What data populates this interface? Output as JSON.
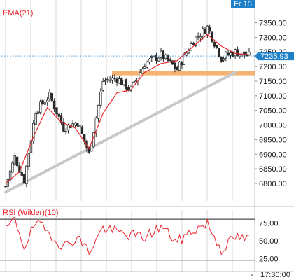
{
  "chart_data": [
    {
      "type": "candlestick",
      "indicator_label": "EMA(21)",
      "period_tag": "Fr 15",
      "last_price_label": "7235.93",
      "last_price": 7235.93,
      "ylim": [
        6740,
        7380
      ],
      "y_ticks": [
        "7350.00",
        "7300.00",
        "7250.00",
        "7200.00",
        "7150.00",
        "7100.00",
        "7050.00",
        "7000.00",
        "6950.00",
        "6900.00",
        "6850.00",
        "6800.00"
      ],
      "grid": true,
      "support_band": {
        "from": 7170,
        "to": 7184
      },
      "trendline": {
        "from_index": 0,
        "from_value": 6770,
        "to_index": 99,
        "to_value": 7180
      },
      "close_path": [
        [
          0,
          6790
        ],
        [
          4,
          6890
        ],
        [
          8,
          6810
        ],
        [
          13,
          7050
        ],
        [
          19,
          7100
        ],
        [
          25,
          6990
        ],
        [
          31,
          7010
        ],
        [
          36,
          6900
        ],
        [
          42,
          7150
        ],
        [
          48,
          7160
        ],
        [
          54,
          7120
        ],
        [
          60,
          7210
        ],
        [
          67,
          7240
        ],
        [
          74,
          7190
        ],
        [
          81,
          7290
        ],
        [
          87,
          7335
        ],
        [
          93,
          7230
        ],
        [
          99,
          7250
        ],
        [
          105,
          7235.93
        ]
      ],
      "ema_path": [
        [
          0,
          6800
        ],
        [
          6,
          6840
        ],
        [
          12,
          6960
        ],
        [
          18,
          7060
        ],
        [
          24,
          7010
        ],
        [
          30,
          6990
        ],
        [
          36,
          6920
        ],
        [
          42,
          7040
        ],
        [
          48,
          7110
        ],
        [
          54,
          7120
        ],
        [
          60,
          7180
        ],
        [
          67,
          7210
        ],
        [
          74,
          7220
        ],
        [
          81,
          7270
        ],
        [
          87,
          7310
        ],
        [
          93,
          7270
        ],
        [
          99,
          7245
        ],
        [
          105,
          7240
        ]
      ],
      "colors": {
        "up": "#2a2a2a",
        "down": "#2a2a2a",
        "ema": "#e8242b",
        "band": "#f2a65a",
        "trendline": "#c8c8c8",
        "price_tag": "#1e80c8"
      }
    },
    {
      "type": "line",
      "indicator_label": "RSI (Wilder)(10)",
      "ylim": [
        15,
        85
      ],
      "y_ticks": [
        "75.00",
        "50.00",
        "25.00"
      ],
      "levels": [
        80,
        23
      ],
      "value_path": [
        [
          0,
          65
        ],
        [
          4,
          80
        ],
        [
          8,
          42
        ],
        [
          13,
          75
        ],
        [
          19,
          60
        ],
        [
          25,
          42
        ],
        [
          31,
          55
        ],
        [
          36,
          35
        ],
        [
          42,
          68
        ],
        [
          48,
          62
        ],
        [
          54,
          58
        ],
        [
          60,
          55
        ],
        [
          67,
          70
        ],
        [
          74,
          48
        ],
        [
          81,
          65
        ],
        [
          87,
          74
        ],
        [
          93,
          38
        ],
        [
          99,
          55
        ],
        [
          105,
          52
        ]
      ],
      "time_label": "17:30:00",
      "color": "#e8242b"
    }
  ]
}
